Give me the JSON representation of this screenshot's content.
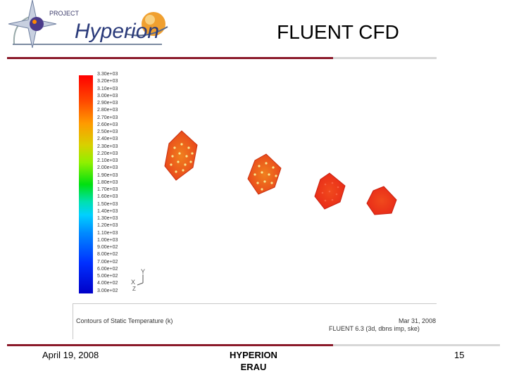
{
  "logo": {
    "small_text": "PROJECT",
    "name": "Hyperion"
  },
  "slide": {
    "title": "FLUENT CFD"
  },
  "colorbar": {
    "labels": [
      "3.30e+03",
      "3.20e+03",
      "3.10e+03",
      "3.00e+03",
      "2.90e+03",
      "2.80e+03",
      "2.70e+03",
      "2.60e+03",
      "2.50e+03",
      "2.40e+03",
      "2.30e+03",
      "2.20e+03",
      "2.10e+03",
      "2.00e+03",
      "1.90e+03",
      "1.80e+03",
      "1.70e+03",
      "1.60e+03",
      "1.50e+03",
      "1.40e+03",
      "1.30e+03",
      "1.20e+03",
      "1.10e+03",
      "1.00e+03",
      "9.00e+02",
      "8.00e+02",
      "7.00e+02",
      "6.00e+02",
      "5.00e+02",
      "4.00e+02",
      "3.00e+02"
    ]
  },
  "axes": {
    "y": "Y",
    "x": "X",
    "z": "Z"
  },
  "plot": {
    "caption": "Contours of Static Temperature (k)",
    "date": "Mar 31, 2008",
    "solver": "FLUENT 6.3 (3d, dbns imp, ske)"
  },
  "footer": {
    "date": "April 19, 2008",
    "org_line1": "HYPERION",
    "org_line2": "ERAU",
    "page": "15"
  },
  "colors": {
    "accent": "#8b1a2a",
    "hex_hot": "#e8281a",
    "hex_orange": "#e8641e"
  }
}
